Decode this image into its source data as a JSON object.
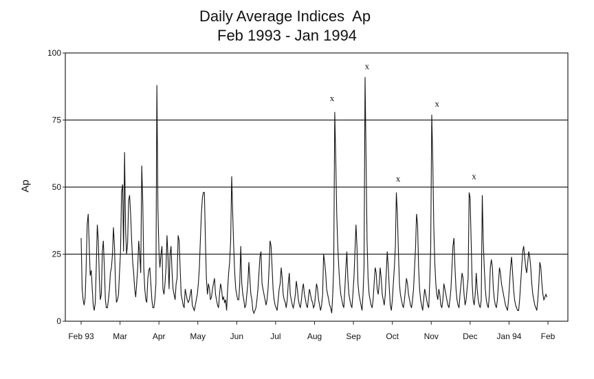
{
  "chart_data": {
    "type": "line",
    "title": "Daily Average Indices  Ap",
    "subtitle": "Feb 1993 - Jan 1994",
    "ylabel": "Ap",
    "xlabel": "",
    "ylim": [
      0,
      100
    ],
    "yticks": [
      0,
      25,
      50,
      75,
      100
    ],
    "xtick_labels": [
      "Feb 93",
      "Mar",
      "Apr",
      "May",
      "Jun",
      "Jul",
      "Aug",
      "Sep",
      "Oct",
      "Nov",
      "Dec",
      "Jan 94",
      "Feb"
    ],
    "horizontal_reference_lines": [
      25,
      50,
      75
    ],
    "annotations": [
      {
        "label": "x",
        "month_index": 6.45,
        "value": 82
      },
      {
        "label": "x",
        "month_index": 7.35,
        "value": 94
      },
      {
        "label": "x",
        "month_index": 8.15,
        "value": 52
      },
      {
        "label": "x",
        "month_index": 9.15,
        "value": 80
      },
      {
        "label": "x",
        "month_index": 10.1,
        "value": 53
      }
    ],
    "series": [
      {
        "values": [
          31,
          12,
          8,
          6,
          9,
          20,
          36,
          40,
          28,
          17,
          19,
          12,
          6,
          4,
          7,
          20,
          36,
          30,
          16,
          8,
          10,
          26,
          30,
          20,
          8,
          5,
          5,
          8,
          12,
          18,
          20,
          25,
          35,
          28,
          14,
          7,
          8,
          10,
          18,
          26,
          48,
          51,
          26,
          63,
          34,
          25,
          29,
          45,
          47,
          40,
          30,
          22,
          18,
          12,
          9,
          14,
          20,
          30,
          25,
          18,
          58,
          44,
          20,
          12,
          8,
          7,
          16,
          19,
          20,
          14,
          8,
          5,
          5,
          8,
          14,
          88,
          42,
          26,
          20,
          25,
          28,
          12,
          10,
          14,
          20,
          32,
          24,
          12,
          25,
          28,
          18,
          12,
          10,
          8,
          14,
          16,
          32,
          30,
          20,
          10,
          8,
          6,
          5,
          12,
          10,
          8,
          7,
          8,
          10,
          12,
          6,
          5,
          4,
          6,
          8,
          10,
          14,
          20,
          30,
          40,
          46,
          48,
          48,
          30,
          16,
          10,
          14,
          12,
          8,
          9,
          12,
          14,
          16,
          10,
          8,
          6,
          5,
          10,
          14,
          12,
          8,
          9,
          7,
          8,
          4,
          12,
          18,
          22,
          30,
          54,
          40,
          28,
          18,
          12,
          10,
          8,
          8,
          14,
          28,
          14,
          10,
          8,
          5,
          6,
          10,
          14,
          22,
          16,
          10,
          8,
          4,
          3,
          4,
          5,
          8,
          12,
          18,
          24,
          26,
          14,
          12,
          10,
          8,
          6,
          8,
          12,
          20,
          30,
          28,
          20,
          12,
          8,
          6,
          5,
          4,
          8,
          12,
          14,
          20,
          16,
          10,
          8,
          7,
          5,
          8,
          14,
          18,
          10,
          8,
          6,
          5,
          7,
          10,
          15,
          12,
          8,
          6,
          5,
          8,
          12,
          14,
          10,
          8,
          6,
          5,
          9,
          12,
          10,
          8,
          7,
          5,
          6,
          10,
          14,
          12,
          8,
          6,
          4,
          6,
          10,
          25,
          22,
          18,
          12,
          10,
          8,
          6,
          5,
          3,
          10,
          20,
          78,
          60,
          40,
          28,
          20,
          14,
          10,
          8,
          6,
          5,
          12,
          20,
          26,
          16,
          10,
          8,
          6,
          5,
          10,
          16,
          26,
          36,
          28,
          14,
          10,
          8,
          6,
          4,
          10,
          20,
          91,
          60,
          30,
          16,
          10,
          8,
          6,
          5,
          8,
          14,
          20,
          18,
          12,
          10,
          14,
          20,
          16,
          10,
          8,
          6,
          10,
          18,
          26,
          20,
          12,
          6,
          4,
          8,
          14,
          20,
          28,
          48,
          40,
          26,
          14,
          10,
          8,
          6,
          5,
          8,
          12,
          16,
          14,
          10,
          8,
          6,
          5,
          8,
          12,
          20,
          28,
          40,
          36,
          20,
          12,
          8,
          6,
          4,
          8,
          12,
          10,
          8,
          6,
          5,
          14,
          28,
          77,
          60,
          36,
          22,
          14,
          10,
          8,
          12,
          10,
          6,
          5,
          8,
          14,
          12,
          10,
          8,
          6,
          5,
          8,
          12,
          20,
          28,
          31,
          20,
          12,
          8,
          6,
          5,
          10,
          14,
          18,
          16,
          10,
          6,
          8,
          12,
          16,
          48,
          46,
          30,
          14,
          8,
          6,
          10,
          18,
          12,
          8,
          6,
          5,
          8,
          47,
          30,
          20,
          12,
          8,
          6,
          5,
          10,
          20,
          23,
          20,
          12,
          8,
          6,
          5,
          8,
          14,
          20,
          18,
          14,
          12,
          10,
          8,
          6,
          5,
          4,
          8,
          14,
          20,
          24,
          18,
          12,
          8,
          6,
          5,
          4,
          4,
          8,
          14,
          20,
          26,
          28,
          24,
          20,
          18,
          22,
          26,
          24,
          20,
          14,
          10,
          8,
          6,
          5,
          4,
          8,
          14,
          22,
          20,
          14,
          10,
          8,
          9,
          10,
          9
        ]
      }
    ]
  }
}
